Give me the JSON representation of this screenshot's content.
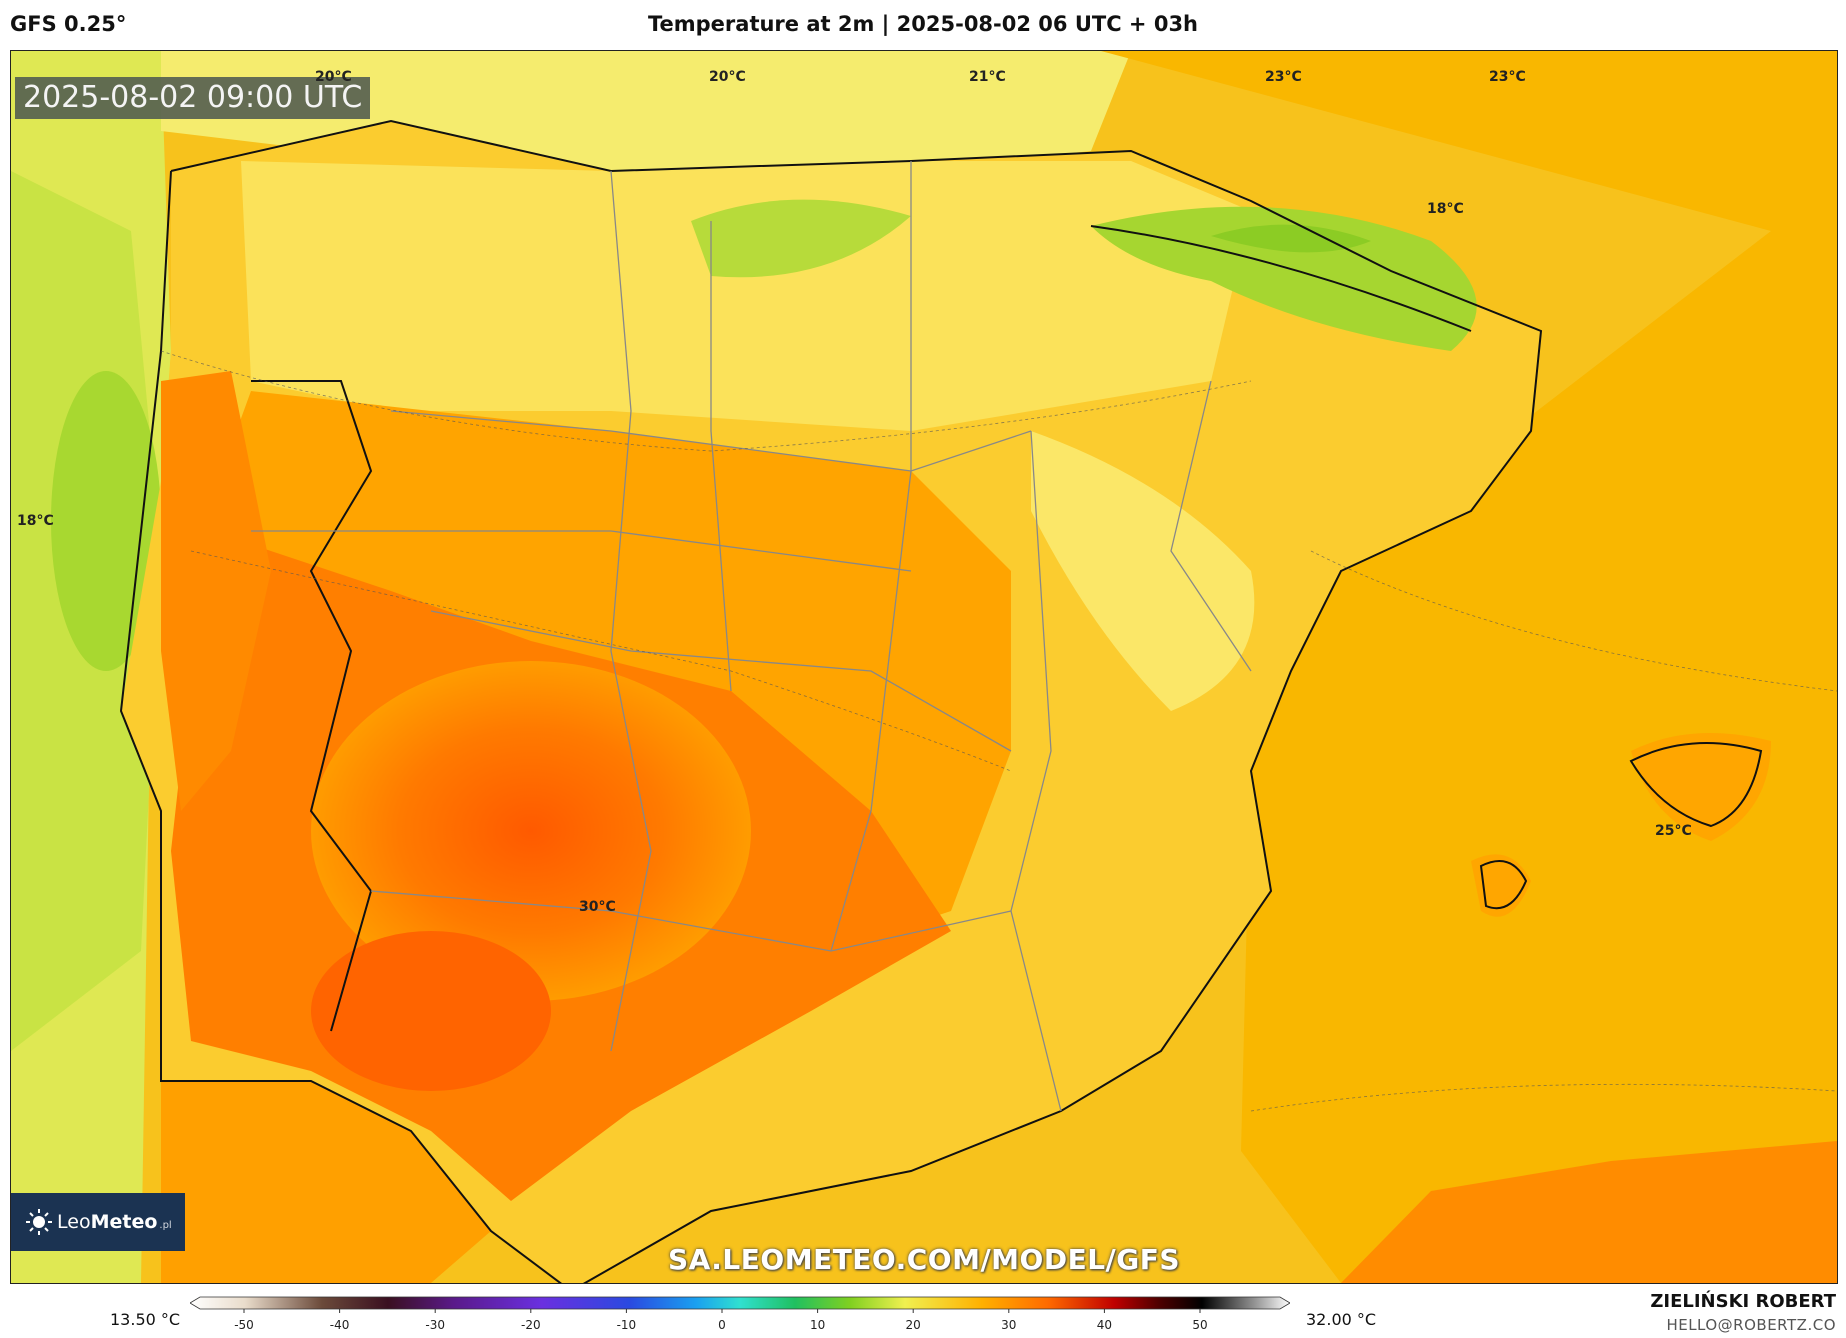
{
  "header": {
    "model": "GFS 0.25°",
    "title": "Temperature at 2m | 2025-08-02 06 UTC + 03h"
  },
  "map": {
    "valid_time": "2025-08-02 09:00 UTC",
    "watermark_url": "SA.LEOMETEO.COM/MODEL/GFS",
    "isotherm_labels": [
      "20°C",
      "20°C",
      "21°C",
      "23°C",
      "23°C",
      "18°C",
      "18°C",
      "30°C",
      "25°C"
    ],
    "colors": {
      "sea_cool": "#d4e64a",
      "sea_warm": "#f5b400",
      "land_mild": "#fbd23c",
      "land_hot": "#ff6a00",
      "pyrenees_cool": "#a8d830"
    }
  },
  "logo": {
    "brand_a": "Leo",
    "brand_b": "Meteo",
    "suffix": ".pl"
  },
  "legend": {
    "min_label": "13.50 °C",
    "max_label": "32.00 °C",
    "ticks": [
      "-50",
      "-40",
      "-30",
      "-20",
      "-10",
      "0",
      "10",
      "20",
      "30",
      "40",
      "50"
    ]
  },
  "credits": {
    "author": "ZIELIŃSKI ROBERT",
    "email": "HELLO@ROBERTZ.CO"
  }
}
